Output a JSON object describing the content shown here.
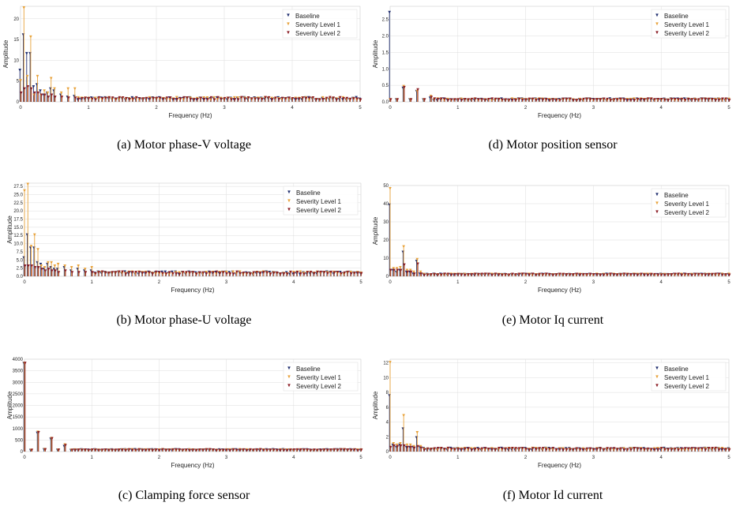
{
  "legend": {
    "entries": [
      "Baseline",
      "Severity Level 1",
      "Severity Level 2"
    ],
    "placement": "top-right"
  },
  "colors": {
    "baseline": "#1f2d6e",
    "severity_1": "#e8a23a",
    "severity_2": "#8b1c24",
    "grid": "#dddddd",
    "axis": "#555555"
  },
  "axis_text": {
    "xlabel": "Frequency (Hz)",
    "ylabel": "Amplitude"
  },
  "chart_data": [
    {
      "id": "a",
      "type": "scatter",
      "caption": "(a) Motor phase-V voltage",
      "xlabel": "Frequency (Hz)",
      "ylabel": "Amplitude",
      "xlim": [
        0,
        5
      ],
      "ylim": [
        0,
        23
      ],
      "x_ticks": [
        "0",
        "1",
        "2",
        "3",
        "4",
        "5"
      ],
      "y_ticks": [
        {
          "value": 0,
          "label": "0"
        },
        {
          "value": 5,
          "label": "5"
        },
        {
          "value": 10,
          "label": "10"
        },
        {
          "value": 15,
          "label": "15"
        },
        {
          "value": 20,
          "label": "20"
        }
      ],
      "grid": true,
      "legend": "top-right",
      "series": [
        {
          "name": "Baseline",
          "x": [
            0,
            0.05,
            0.1,
            0.15,
            0.2,
            0.25,
            0.3,
            0.35,
            0.4,
            0.45,
            0.5,
            0.6,
            0.7,
            0.8
          ],
          "values": [
            7.5,
            16,
            11.5,
            11.5,
            3.5,
            4,
            2.5,
            1.5,
            2,
            3,
            2.5,
            1.5,
            1,
            1.2
          ]
        },
        {
          "name": "Severity Level 1",
          "x": [
            0,
            0.05,
            0.1,
            0.15,
            0.2,
            0.25,
            0.3,
            0.35,
            0.4,
            0.45,
            0.5,
            0.6,
            0.7,
            0.8
          ],
          "values": [
            5,
            22.5,
            6,
            15.5,
            1.5,
            6,
            1.5,
            2.5,
            2,
            5.5,
            3,
            2,
            3,
            3
          ]
        },
        {
          "name": "Severity Level 2",
          "x": [
            0,
            0.05,
            0.1,
            0.15,
            0.2,
            0.25,
            0.3,
            0.35,
            0.4,
            0.45,
            0.5,
            0.6,
            0.7,
            0.8
          ],
          "values": [
            2,
            3,
            3.5,
            3,
            2,
            2,
            1.5,
            1.5,
            1,
            1.5,
            1,
            1,
            0.8,
            0.8
          ]
        }
      ],
      "noise_floor": 0.6
    },
    {
      "id": "b",
      "type": "scatter",
      "caption": "(b) Motor phase-U voltage",
      "xlabel": "Frequency (Hz)",
      "ylabel": "Amplitude",
      "xlim": [
        0,
        5
      ],
      "ylim": [
        0,
        28.5
      ],
      "x_ticks": [
        "0",
        "1",
        "2",
        "3",
        "4",
        "5"
      ],
      "y_ticks": [
        {
          "value": 0,
          "label": "0.0"
        },
        {
          "value": 2.5,
          "label": "2.5"
        },
        {
          "value": 5,
          "label": "5.0"
        },
        {
          "value": 7.5,
          "label": "7.5"
        },
        {
          "value": 10,
          "label": "10.0"
        },
        {
          "value": 12.5,
          "label": "12.5"
        },
        {
          "value": 15,
          "label": "15.0"
        },
        {
          "value": 17.5,
          "label": "17.5"
        },
        {
          "value": 20,
          "label": "20.0"
        },
        {
          "value": 22.5,
          "label": "22.5"
        },
        {
          "value": 25,
          "label": "25.0"
        },
        {
          "value": 27.5,
          "label": "27.5"
        }
      ],
      "grid": true,
      "legend": "top-right",
      "series": [
        {
          "name": "Baseline",
          "x": [
            0,
            0.05,
            0.1,
            0.15,
            0.2,
            0.25,
            0.3,
            0.35,
            0.4,
            0.45,
            0.5,
            0.6,
            0.7,
            0.8,
            0.9,
            1.0
          ],
          "values": [
            5.5,
            12.5,
            8.5,
            8.5,
            4,
            3.5,
            2,
            3.5,
            2.5,
            2,
            2,
            2.5,
            1.5,
            2,
            1.5,
            1.5
          ]
        },
        {
          "name": "Severity Level 1",
          "x": [
            0,
            0.05,
            0.1,
            0.15,
            0.2,
            0.25,
            0.3,
            0.35,
            0.4,
            0.45,
            0.5,
            0.6,
            0.7,
            0.8,
            0.9,
            1.0
          ],
          "values": [
            26,
            28,
            9,
            12.5,
            8,
            3,
            2.5,
            4,
            4,
            3,
            3.5,
            3,
            2.5,
            3,
            2,
            2.5
          ]
        },
        {
          "name": "Severity Level 2",
          "x": [
            0,
            0.05,
            0.1,
            0.15,
            0.2,
            0.25,
            0.3,
            0.35,
            0.4,
            0.45,
            0.5,
            0.6,
            0.7,
            0.8,
            0.9,
            1.0
          ],
          "values": [
            3,
            3,
            3,
            2.5,
            2.5,
            2,
            1.5,
            2,
            1.5,
            1.5,
            1,
            1.5,
            1,
            1,
            1,
            1
          ]
        }
      ],
      "noise_floor": 0.8
    },
    {
      "id": "c",
      "type": "scatter",
      "caption": "(c) Clamping force sensor",
      "xlabel": "Frequency (Hz)",
      "ylabel": "Amplitude",
      "xlim": [
        0,
        5
      ],
      "ylim": [
        0,
        4000
      ],
      "x_ticks": [
        "0",
        "1",
        "2",
        "3",
        "4",
        "5"
      ],
      "y_ticks": [
        {
          "value": 0,
          "label": "0"
        },
        {
          "value": 500,
          "label": "500"
        },
        {
          "value": 1000,
          "label": "1000"
        },
        {
          "value": 1500,
          "label": "1500"
        },
        {
          "value": 2000,
          "label": "2000"
        },
        {
          "value": 2500,
          "label": "2500"
        },
        {
          "value": 3000,
          "label": "3000"
        },
        {
          "value": 3500,
          "label": "3500"
        },
        {
          "value": 4000,
          "label": "4000"
        }
      ],
      "grid": true,
      "legend": "top-right",
      "series": [
        {
          "name": "Baseline",
          "x": [
            0,
            0.1,
            0.2,
            0.3,
            0.4,
            0.5,
            0.6,
            0.7
          ],
          "values": [
            3800,
            30,
            780,
            60,
            520,
            40,
            200,
            30
          ]
        },
        {
          "name": "Severity Level 1",
          "x": [
            0,
            0.1,
            0.2,
            0.3,
            0.4,
            0.5,
            0.6,
            0.7
          ],
          "values": [
            3800,
            40,
            820,
            70,
            550,
            50,
            270,
            40
          ]
        },
        {
          "name": "Severity Level 2",
          "x": [
            0,
            0.1,
            0.2,
            0.3,
            0.4,
            0.5,
            0.6,
            0.7
          ],
          "values": [
            3800,
            35,
            800,
            60,
            540,
            45,
            240,
            35
          ]
        }
      ],
      "noise_floor": 40
    },
    {
      "id": "d",
      "type": "scatter",
      "caption": "(d) Motor position sensor",
      "xlabel": "Frequency (Hz)",
      "ylabel": "Amplitude",
      "xlim": [
        0,
        5
      ],
      "ylim": [
        0,
        2.9
      ],
      "x_ticks": [
        "0",
        "1",
        "2",
        "3",
        "4",
        "5"
      ],
      "y_ticks": [
        {
          "value": 0,
          "label": "0.0"
        },
        {
          "value": 0.5,
          "label": "0.5"
        },
        {
          "value": 1.0,
          "label": "1.0"
        },
        {
          "value": 1.5,
          "label": "1.5"
        },
        {
          "value": 2.0,
          "label": "2.0"
        },
        {
          "value": 2.5,
          "label": "2.5"
        }
      ],
      "grid": true,
      "legend": "top-right",
      "series": [
        {
          "name": "Baseline",
          "x": [
            0,
            0.1,
            0.2,
            0.3,
            0.4,
            0.5,
            0.6
          ],
          "values": [
            2.7,
            0.05,
            0.4,
            0.05,
            0.3,
            0.05,
            0.1
          ]
        },
        {
          "name": "Severity Level 1",
          "x": [
            0,
            0.1,
            0.2,
            0.3,
            0.4,
            0.5,
            0.6
          ],
          "values": [
            0.05,
            0.05,
            0.45,
            0.05,
            0.3,
            0.05,
            0.15
          ]
        },
        {
          "name": "Severity Level 2",
          "x": [
            0,
            0.1,
            0.2,
            0.3,
            0.4,
            0.5,
            0.6
          ],
          "values": [
            0.05,
            0.05,
            0.42,
            0.05,
            0.35,
            0.05,
            0.12
          ]
        }
      ],
      "noise_floor": 0.05
    },
    {
      "id": "e",
      "type": "scatter",
      "caption": "(e) Motor Iq current",
      "xlabel": "Frequency (Hz)",
      "ylabel": "Amplitude",
      "xlim": [
        0,
        5
      ],
      "ylim": [
        0,
        50
      ],
      "x_ticks": [
        "0",
        "1",
        "2",
        "3",
        "4",
        "5"
      ],
      "y_ticks": [
        {
          "value": 0,
          "label": "0"
        },
        {
          "value": 10,
          "label": "10"
        },
        {
          "value": 20,
          "label": "20"
        },
        {
          "value": 30,
          "label": "30"
        },
        {
          "value": 40,
          "label": "40"
        },
        {
          "value": 50,
          "label": "50"
        }
      ],
      "grid": true,
      "legend": "top-right",
      "series": [
        {
          "name": "Baseline",
          "x": [
            0,
            0.05,
            0.1,
            0.15,
            0.2,
            0.25,
            0.3,
            0.35,
            0.4,
            0.45
          ],
          "values": [
            39,
            3,
            2,
            3,
            13,
            2,
            2,
            1,
            8,
            1
          ]
        },
        {
          "name": "Severity Level 1",
          "x": [
            0,
            0.05,
            0.1,
            0.15,
            0.2,
            0.25,
            0.3,
            0.35,
            0.4,
            0.45
          ],
          "values": [
            48,
            4,
            4,
            4.5,
            16,
            3,
            3,
            2,
            9,
            2
          ]
        },
        {
          "name": "Severity Level 2",
          "x": [
            0,
            0.05,
            0.1,
            0.15,
            0.2,
            0.25,
            0.3,
            0.35,
            0.4,
            0.45
          ],
          "values": [
            3,
            3,
            3,
            3,
            6,
            2,
            2,
            1,
            6.5,
            1
          ]
        }
      ],
      "noise_floor": 0.6
    },
    {
      "id": "f",
      "type": "scatter",
      "caption": "(f) Motor Id current",
      "xlabel": "Frequency (Hz)",
      "ylabel": "Amplitude",
      "xlim": [
        0,
        5
      ],
      "ylim": [
        0,
        12.5
      ],
      "x_ticks": [
        "0",
        "1",
        "2",
        "3",
        "4",
        "5"
      ],
      "y_ticks": [
        {
          "value": 0,
          "label": "0"
        },
        {
          "value": 2,
          "label": "2"
        },
        {
          "value": 4,
          "label": "4"
        },
        {
          "value": 6,
          "label": "6"
        },
        {
          "value": 8,
          "label": "8"
        },
        {
          "value": 10,
          "label": "10"
        },
        {
          "value": 12,
          "label": "12"
        }
      ],
      "grid": true,
      "legend": "top-right",
      "series": [
        {
          "name": "Baseline",
          "x": [
            0,
            0.05,
            0.1,
            0.15,
            0.2,
            0.25,
            0.3,
            0.35,
            0.4,
            0.45
          ],
          "values": [
            7.5,
            0.8,
            0.5,
            0.8,
            3,
            0.5,
            0.5,
            0.5,
            1.8,
            0.5
          ]
        },
        {
          "name": "Severity Level 1",
          "x": [
            0,
            0.05,
            0.1,
            0.15,
            0.2,
            0.25,
            0.3,
            0.35,
            0.4,
            0.45
          ],
          "values": [
            12,
            1,
            0.8,
            1,
            4.8,
            0.8,
            0.8,
            0.6,
            2.5,
            0.6
          ]
        },
        {
          "name": "Severity Level 2",
          "x": [
            0,
            0.05,
            0.1,
            0.15,
            0.2,
            0.25,
            0.3,
            0.35,
            0.4,
            0.45
          ],
          "values": [
            0.5,
            0.7,
            0.6,
            0.7,
            0.7,
            0.5,
            0.5,
            0.4,
            0.6,
            0.4
          ]
        }
      ],
      "noise_floor": 0.25
    }
  ]
}
